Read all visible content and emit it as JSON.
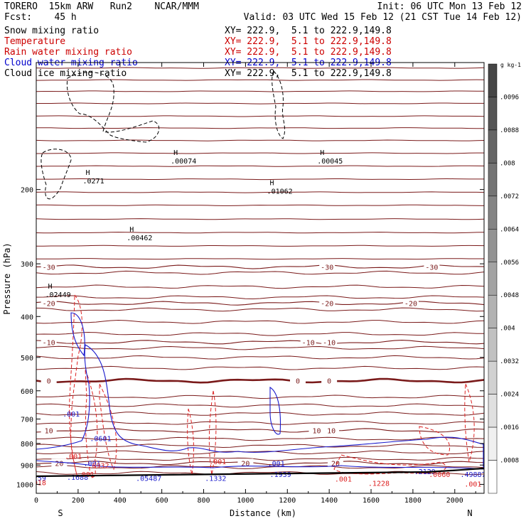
{
  "header": {
    "line1_left": "TORERO  15km ARW   Run2    NCAR/MMM",
    "line1_right": "Init: 06 UTC Mon 13 Feb 12",
    "line2_left": "Fcst:    45 h",
    "line2_right": "Valid: 03 UTC Wed 15 Feb 12 (21 CST Tue 14 Feb 12)"
  },
  "fields": [
    {
      "label": "Snow mixing ratio",
      "xsec": "XY= 222.9,  5.1 to 222.9,149.8",
      "color": "#000000"
    },
    {
      "label": "Temperature",
      "xsec": "XY= 222.9,  5.1 to 222.9,149.8",
      "color": "#cc0000"
    },
    {
      "label": "Rain water mixing ratio",
      "xsec": "XY= 222.9,  5.1 to 222.9,149.8",
      "color": "#cc0000"
    },
    {
      "label": "Cloud water mixing ratio",
      "xsec": "XY= 222.9,  5.1 to 222.9,149.8",
      "color": "#0000cc"
    },
    {
      "label": "Cloud ice mixing ratio",
      "xsec": "XY= 222.9,  5.1 to 222.9,149.8",
      "color": "#000000"
    }
  ],
  "chart_data": {
    "type": "cross-section contour",
    "ylabel": "Pressure (hPa)",
    "xlabel": "Distance (km)",
    "x_ticks": [
      0,
      200,
      400,
      600,
      800,
      1000,
      1200,
      1400,
      1600,
      1800,
      2000
    ],
    "y_ticks": [
      200,
      300,
      400,
      500,
      600,
      700,
      800,
      900,
      1000
    ],
    "xlim": [
      0,
      2140
    ],
    "ylim": [
      1050,
      100
    ],
    "y_scale": "log",
    "end_labels": {
      "left": "S",
      "right": "N"
    },
    "colorbar": {
      "unit": "g kg-1",
      "ticks": [
        ".0096",
        ".0088",
        ".008",
        ".0072",
        ".0064",
        ".0056",
        ".0048",
        ".004",
        ".0032",
        ".0024",
        ".0016",
        ".0008"
      ]
    },
    "temperature_contours": [
      {
        "value": -30,
        "label": "-30",
        "pressure": 305,
        "labels_at": [
          60,
          1390,
          1890
        ]
      },
      {
        "value": -20,
        "label": "-20",
        "pressure": 372,
        "labels_at": [
          60,
          1390,
          1790
        ]
      },
      {
        "value": -10,
        "label": "-10",
        "pressure": 460,
        "labels_at": [
          60,
          1300,
          1400
        ]
      },
      {
        "value": 0,
        "label": "0",
        "pressure": 568,
        "labels_at": [
          60,
          1250,
          1400
        ],
        "bold": true
      },
      {
        "value": 10,
        "label": "10",
        "pressure": 745,
        "labels_at": [
          60,
          1340,
          1410
        ]
      },
      {
        "value": 20,
        "label": "20",
        "pressure": 890,
        "labels_at": [
          110,
          1000,
          1430
        ]
      }
    ],
    "cloud_ice_maxima": [
      {
        "label": ".0271",
        "distance": 270,
        "pressure": 192
      },
      {
        "label": ".00074",
        "distance": 690,
        "pressure": 172
      },
      {
        "label": ".01062",
        "distance": 1150,
        "pressure": 203
      },
      {
        "label": ".00045",
        "distance": 1390,
        "pressure": 172
      },
      {
        "label": ".00462",
        "distance": 480,
        "pressure": 262
      },
      {
        "label": ".02449",
        "distance": 90,
        "pressure": 357
      }
    ],
    "cloud_water_labels": [
      {
        "label": ".001",
        "distance": 160,
        "pressure": 690
      },
      {
        "label": ".0601",
        "distance": 290,
        "pressure": 790
      },
      {
        "label": ".001",
        "distance": 260,
        "pressure": 905
      },
      {
        "label": ".1688",
        "distance": 180,
        "pressure": 975
      },
      {
        "label": ".05487",
        "distance": 510,
        "pressure": 982
      },
      {
        "label": ".1332",
        "distance": 840,
        "pressure": 982
      },
      {
        "label": ".001",
        "distance": 1140,
        "pressure": 905
      },
      {
        "label": ".1939",
        "distance": 1150,
        "pressure": 960
      },
      {
        "label": ".2129",
        "distance": 1840,
        "pressure": 945
      },
      {
        "label": ".49887",
        "distance": 2060,
        "pressure": 960
      },
      {
        "label": "259",
        "distance": 20,
        "pressure": 980
      }
    ],
    "rain_water_labels": [
      {
        "label": ".001",
        "distance": 170,
        "pressure": 870
      },
      {
        "label": ".6932",
        "distance": 280,
        "pressure": 915
      },
      {
        "label": ".001",
        "distance": 230,
        "pressure": 960
      },
      {
        "label": ".001",
        "distance": 860,
        "pressure": 895
      },
      {
        "label": ".001",
        "distance": 1460,
        "pressure": 985
      },
      {
        "label": ".0060",
        "distance": 1910,
        "pressure": 960
      },
      {
        "label": ".1228",
        "distance": 1620,
        "pressure": 1008
      },
      {
        "label": ".001",
        "distance": 2080,
        "pressure": 1012
      },
      {
        "label": "018",
        "distance": 20,
        "pressure": 1005
      }
    ]
  }
}
